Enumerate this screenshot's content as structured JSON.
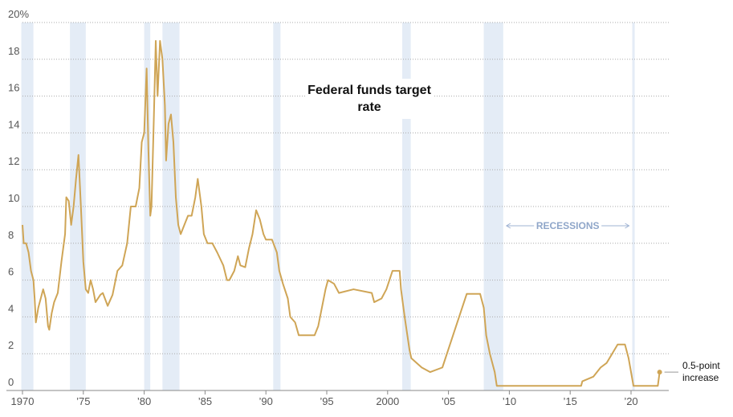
{
  "chart_data": {
    "type": "line",
    "xlim": [
      1970,
      2023.1
    ],
    "ylim": [
      0,
      20
    ],
    "grid": true,
    "xticks": [
      1970,
      {
        "value": 1975,
        "label": "’75"
      },
      {
        "value": 1980,
        "label": "’80"
      },
      {
        "value": 1985,
        "label": "’85"
      },
      {
        "value": 1990,
        "label": "’90"
      },
      {
        "value": 1995,
        "label": "’95"
      },
      2000,
      {
        "value": 2005,
        "label": "’05"
      },
      {
        "value": 2010,
        "label": "’10"
      },
      {
        "value": 2015,
        "label": "’15"
      },
      {
        "value": 2020,
        "label": "’20"
      }
    ],
    "yticks": [
      0,
      2,
      4,
      6,
      8,
      10,
      12,
      14,
      16,
      18,
      {
        "value": 20,
        "label": "20%"
      }
    ],
    "recessions": [
      {
        "start": 1969.9,
        "end": 1970.9
      },
      {
        "start": 1973.9,
        "end": 1975.2
      },
      {
        "start": 1980.0,
        "end": 1980.5
      },
      {
        "start": 1981.5,
        "end": 1982.9
      },
      {
        "start": 1990.6,
        "end": 1991.2
      },
      {
        "start": 2001.2,
        "end": 2001.9
      },
      {
        "start": 2007.9,
        "end": 2009.5
      },
      {
        "start": 2020.1,
        "end": 2020.3
      }
    ],
    "recessions_label": "RECESSIONS",
    "end_label": "0.5-point increase",
    "x": [
      1970.0,
      1970.1,
      1970.3,
      1970.5,
      1970.7,
      1970.9,
      1971.0,
      1971.1,
      1971.3,
      1971.5,
      1971.7,
      1971.9,
      1972.1,
      1972.2,
      1972.4,
      1972.6,
      1972.9,
      1973.2,
      1973.5,
      1973.6,
      1973.8,
      1974.0,
      1974.2,
      1974.4,
      1974.6,
      1974.8,
      1975.0,
      1975.2,
      1975.4,
      1975.6,
      1975.8,
      1976.0,
      1976.4,
      1976.6,
      1977.0,
      1977.4,
      1977.8,
      1978.2,
      1978.6,
      1978.9,
      1979.3,
      1979.6,
      1979.8,
      1980.0,
      1980.2,
      1980.35,
      1980.5,
      1980.6,
      1980.8,
      1980.95,
      1981.1,
      1981.3,
      1981.5,
      1981.7,
      1981.8,
      1982.0,
      1982.2,
      1982.4,
      1982.6,
      1982.8,
      1983.0,
      1983.3,
      1983.6,
      1983.9,
      1984.2,
      1984.4,
      1984.7,
      1984.9,
      1985.2,
      1985.6,
      1986.0,
      1986.5,
      1986.8,
      1987.0,
      1987.4,
      1987.7,
      1987.9,
      1988.3,
      1988.6,
      1988.9,
      1989.2,
      1989.5,
      1989.8,
      1990.0,
      1990.5,
      1990.9,
      1991.1,
      1991.4,
      1991.8,
      1992.0,
      1992.4,
      1992.7,
      1993.0,
      1994.0,
      1994.3,
      1994.6,
      1994.9,
      1995.1,
      1995.6,
      1996.0,
      1997.2,
      1998.7,
      1998.9,
      1999.5,
      1999.9,
      2000.4,
      2000.99,
      2001.1,
      2001.4,
      2001.8,
      2001.95,
      2002.8,
      2003.5,
      2004.5,
      2005.0,
      2006.0,
      2006.5,
      2007.6,
      2007.9,
      2008.1,
      2008.4,
      2008.8,
      2008.97,
      2015.9,
      2016.0,
      2016.9,
      2017.5,
      2018.0,
      2018.9,
      2019.5,
      2019.8,
      2020.2,
      2022.2,
      2022.25,
      2022.35
    ],
    "series": [
      {
        "name": "Federal funds target rate",
        "color": "#cfa556",
        "values": [
          9.0,
          8.0,
          8.0,
          7.5,
          6.5,
          6.0,
          5.0,
          3.7,
          4.5,
          5.0,
          5.5,
          5.0,
          3.5,
          3.3,
          4.2,
          4.8,
          5.3,
          7.0,
          8.5,
          10.5,
          10.3,
          9.0,
          10.0,
          11.5,
          12.8,
          10.0,
          7.0,
          5.5,
          5.3,
          6.0,
          5.5,
          4.8,
          5.2,
          5.3,
          4.6,
          5.2,
          6.5,
          6.8,
          8.0,
          10.0,
          10.0,
          11.0,
          13.5,
          14.0,
          17.5,
          13.0,
          9.5,
          10.0,
          15.0,
          19.0,
          16.0,
          19.0,
          18.0,
          15.5,
          12.5,
          14.5,
          15.0,
          13.5,
          10.5,
          9.0,
          8.5,
          9.0,
          9.5,
          9.5,
          10.5,
          11.5,
          10.0,
          8.5,
          8.0,
          8.0,
          7.5,
          6.8,
          6.0,
          6.0,
          6.5,
          7.3,
          6.8,
          6.7,
          7.7,
          8.5,
          9.8,
          9.3,
          8.5,
          8.2,
          8.2,
          7.5,
          6.5,
          5.8,
          5.0,
          4.0,
          3.7,
          3.0,
          3.0,
          3.0,
          3.5,
          4.5,
          5.5,
          6.0,
          5.8,
          5.3,
          5.5,
          5.3,
          4.8,
          5.0,
          5.5,
          6.5,
          6.5,
          5.5,
          4.0,
          2.2,
          1.75,
          1.25,
          1.0,
          1.25,
          2.25,
          4.25,
          5.25,
          5.25,
          4.5,
          3.0,
          2.0,
          1.0,
          0.25,
          0.25,
          0.5,
          0.75,
          1.25,
          1.5,
          2.5,
          2.5,
          1.75,
          0.25,
          0.25,
          0.5,
          1.0
        ]
      }
    ]
  }
}
